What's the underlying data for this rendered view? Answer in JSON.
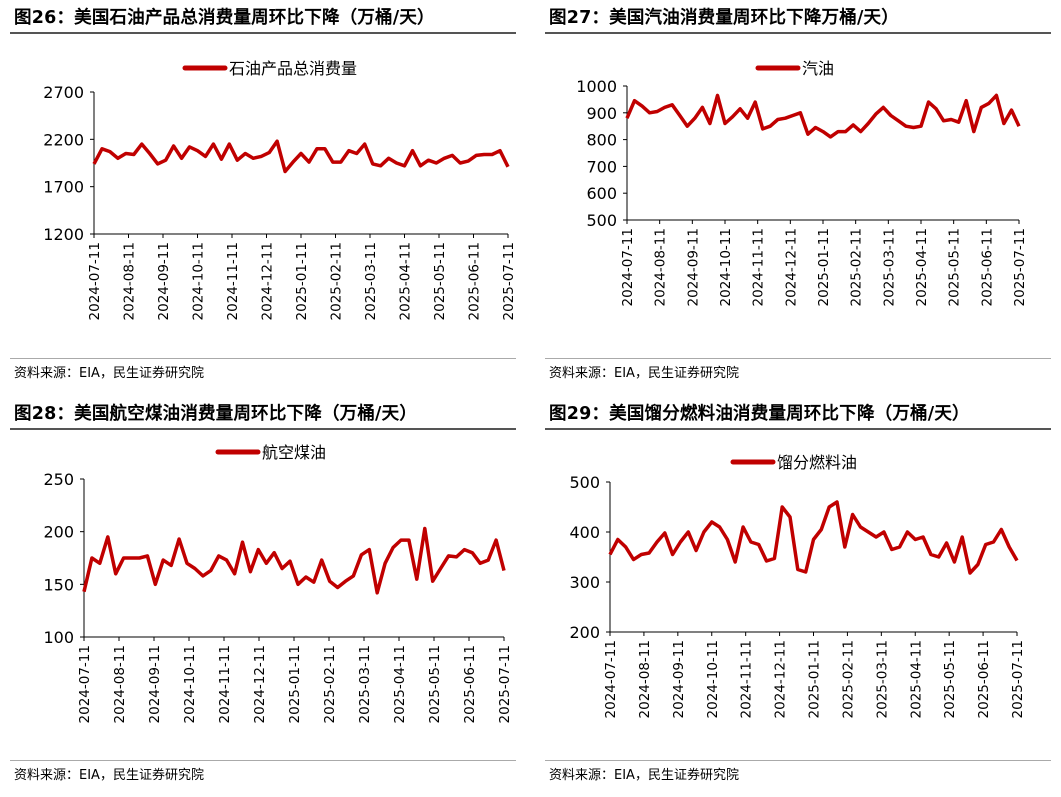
{
  "colors": {
    "series": "#c00000",
    "axis": "#000000",
    "rule": "#555555"
  },
  "charts": [
    {
      "id": "p26",
      "title": "图26：美国石油产品总消费量周环比下降（万桶/天）",
      "source": "资料来源：EIA，民生证券研究院",
      "chart_data": {
        "type": "line",
        "x_ticks": [
          "2024-07-11",
          "2024-08-11",
          "2024-09-11",
          "2024-10-11",
          "2024-11-11",
          "2024-12-11",
          "2025-01-11",
          "2025-02-11",
          "2025-03-11",
          "2025-04-11",
          "2025-05-11",
          "2025-06-11",
          "2025-07-11"
        ],
        "y_ticks": [
          1200,
          1700,
          2200,
          2700
        ],
        "ylim": [
          1200,
          2700
        ],
        "series": [
          {
            "name": "石油产品总消费量",
            "values": [
              1940,
              2100,
              2070,
              2000,
              2050,
              2040,
              2150,
              2050,
              1940,
              1980,
              2130,
              2000,
              2120,
              2080,
              2020,
              2150,
              1990,
              2150,
              1980,
              2050,
              2000,
              2020,
              2060,
              2180,
              1860,
              1960,
              2050,
              1960,
              2100,
              2100,
              1960,
              1960,
              2080,
              2050,
              2150,
              1940,
              1920,
              2000,
              1950,
              1920,
              2080,
              1920,
              1980,
              1950,
              2000,
              2030,
              1950,
              1970,
              2030,
              2040,
              2040,
              2080,
              1910
            ]
          }
        ]
      }
    },
    {
      "id": "p27",
      "title": "图27：美国汽油消费量周环比下降万桶/天）",
      "source": "资料来源：EIA，民生证券研究院",
      "chart_data": {
        "type": "line",
        "x_ticks": [
          "2024-07-11",
          "2024-08-11",
          "2024-09-11",
          "2024-10-11",
          "2024-11-11",
          "2024-12-11",
          "2025-01-11",
          "2025-02-11",
          "2025-03-11",
          "2025-04-11",
          "2025-05-11",
          "2025-06-11",
          "2025-07-11"
        ],
        "y_ticks": [
          500,
          600,
          700,
          800,
          900,
          1000
        ],
        "ylim": [
          500,
          1000
        ],
        "series": [
          {
            "name": "汽油",
            "values": [
              880,
              945,
              925,
              900,
              905,
              920,
              930,
              890,
              850,
              880,
              920,
              860,
              965,
              860,
              885,
              915,
              880,
              940,
              840,
              850,
              875,
              880,
              890,
              900,
              820,
              845,
              830,
              810,
              830,
              830,
              855,
              830,
              860,
              895,
              920,
              890,
              870,
              850,
              845,
              850,
              940,
              915,
              870,
              875,
              865,
              945,
              830,
              920,
              935,
              965,
              860,
              910,
              850
            ]
          }
        ]
      }
    },
    {
      "id": "p28",
      "title": "图28：美国航空煤油消费量周环比下降（万桶/天）",
      "source": "资料来源：EIA，民生证券研究院",
      "chart_data": {
        "type": "line",
        "x_ticks": [
          "2024-07-11",
          "2024-08-11",
          "2024-09-11",
          "2024-10-11",
          "2024-11-11",
          "2024-12-11",
          "2025-01-11",
          "2025-02-11",
          "2025-03-11",
          "2025-04-11",
          "2025-05-11",
          "2025-06-11",
          "2025-07-11"
        ],
        "y_ticks": [
          100,
          150,
          200,
          250
        ],
        "ylim": [
          100,
          250
        ],
        "series": [
          {
            "name": "航空煤油",
            "values": [
              143,
              175,
              170,
              195,
              160,
              175,
              175,
              175,
              177,
              150,
              173,
              168,
              193,
              170,
              165,
              158,
              163,
              177,
              173,
              160,
              190,
              162,
              183,
              170,
              180,
              165,
              172,
              150,
              157,
              152,
              173,
              153,
              147,
              153,
              158,
              178,
              183,
              142,
              170,
              185,
              192,
              192,
              155,
              203,
              153,
              165,
              177,
              176,
              183,
              180,
              170,
              173,
              192,
              163
            ]
          }
        ]
      }
    },
    {
      "id": "p29",
      "title": "图29：美国馏分燃料油消费量周环比下降（万桶/天）",
      "source": "资料来源：EIA，民生证券研究院",
      "chart_data": {
        "type": "line",
        "x_ticks": [
          "2024-07-11",
          "2024-08-11",
          "2024-09-11",
          "2024-10-11",
          "2024-11-11",
          "2024-12-11",
          "2025-01-11",
          "2025-02-11",
          "2025-03-11",
          "2025-04-11",
          "2025-05-11",
          "2025-06-11",
          "2025-07-11"
        ],
        "y_ticks": [
          200,
          300,
          400,
          500
        ],
        "ylim": [
          200,
          500
        ],
        "series": [
          {
            "name": "馏分燃料油",
            "values": [
              355,
              385,
              370,
              345,
              355,
              358,
              380,
              398,
              355,
              380,
              400,
              363,
              400,
              420,
              410,
              385,
              340,
              410,
              380,
              375,
              342,
              347,
              450,
              430,
              325,
              320,
              385,
              405,
              450,
              460,
              370,
              435,
              410,
              400,
              390,
              400,
              365,
              370,
              400,
              385,
              390,
              355,
              350,
              378,
              340,
              390,
              318,
              335,
              375,
              380,
              405,
              370,
              343
            ]
          }
        ]
      }
    }
  ]
}
